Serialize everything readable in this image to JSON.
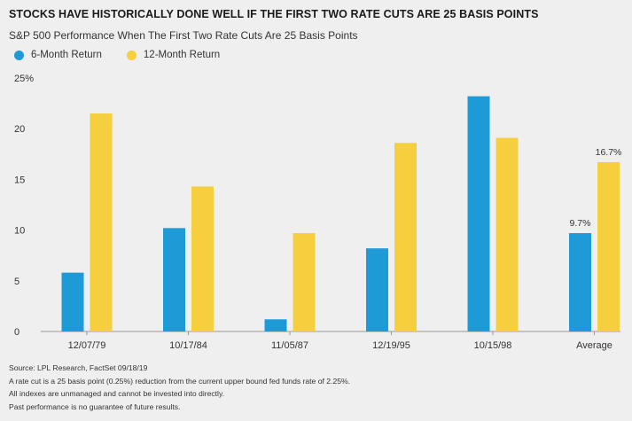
{
  "title": "STOCKS HAVE HISTORICALLY DONE WELL IF THE FIRST TWO RATE CUTS ARE 25 BASIS POINTS",
  "subtitle": "S&P 500 Performance When The First Two Rate Cuts Are 25 Basis Points",
  "colors": {
    "six_month": "#1e9bd7",
    "twelve_month": "#f5cf3d",
    "background": "#efefef"
  },
  "chart_data": {
    "type": "bar",
    "categories": [
      "12/07/79",
      "10/17/84",
      "11/05/87",
      "12/19/95",
      "10/15/98",
      "Average"
    ],
    "series": [
      {
        "name": "6-Month Return",
        "values": [
          5.8,
          10.2,
          1.2,
          8.2,
          23.2,
          9.7
        ]
      },
      {
        "name": "12-Month Return",
        "values": [
          21.5,
          14.3,
          9.7,
          18.6,
          19.1,
          16.7
        ]
      }
    ],
    "yticks": [
      "25%",
      "20",
      "15",
      "10",
      "5",
      "0"
    ],
    "ylim": [
      0,
      25
    ],
    "data_labels": [
      {
        "series": 0,
        "index": 5,
        "text": "9.7%"
      },
      {
        "series": 1,
        "index": 5,
        "text": "16.7%"
      }
    ],
    "legend_position": "top-left",
    "grid": false
  },
  "footer": {
    "source": "Source: LPL Research, FactSet 09/18/19",
    "note1": "A rate cut is a 25 basis point (0.25%) reduction from the current upper bound fed funds rate of 2.25%.",
    "note2": "All indexes are unmanaged and cannot be invested into directly.",
    "note3": "Past performance is no guarantee of future results."
  }
}
